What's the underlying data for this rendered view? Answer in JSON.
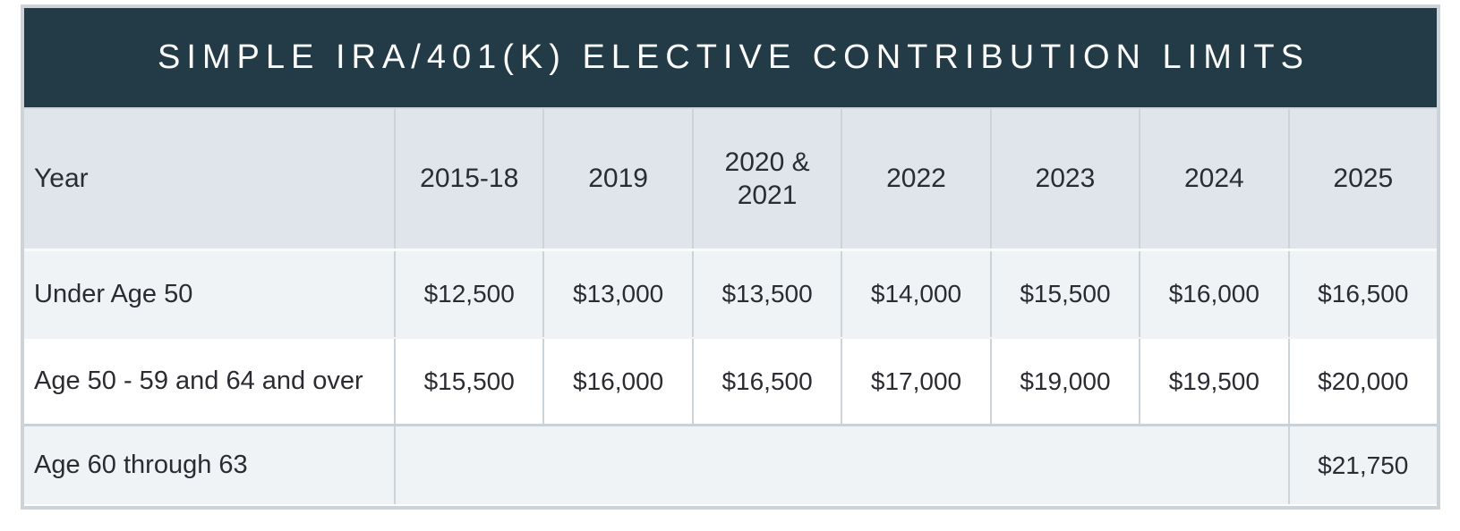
{
  "chart_data": {
    "type": "table",
    "title": "SIMPLE IRA/401(K) ELECTIVE CONTRIBUTION LIMITS",
    "row_header_label": "Year",
    "columns": [
      "2015-18",
      "2019",
      "2020 &\n2021",
      "2022",
      "2023",
      "2024",
      "2025"
    ],
    "rows": [
      {
        "label": "Under Age 50",
        "values": [
          "$12,500",
          "$13,000",
          "$13,500",
          "$14,000",
          "$15,500",
          "$16,000",
          "$16,500"
        ]
      },
      {
        "label": "Age 50 - 59 and 64 and over",
        "values": [
          "$15,500",
          "$16,000",
          "$16,500",
          "$17,000",
          "$19,000",
          "$19,500",
          "$20,000"
        ]
      },
      {
        "label": "Age 60 through 63",
        "merged_empty_columns": [
          "2015-18",
          "2019",
          "2020 & 2021",
          "2022",
          "2023",
          "2024"
        ],
        "values_2025": "$21,750"
      }
    ]
  },
  "colors": {
    "title_bar_bg": "#233a47",
    "title_text": "#fbfcfc",
    "header_row_bg": "#dfe5ea",
    "light_row_bg": "#eff3f6",
    "white_row_bg": "#ffffff",
    "divider": "#ccd4da",
    "frame_border": "#ccd3d9",
    "text": "#2b2c31"
  }
}
